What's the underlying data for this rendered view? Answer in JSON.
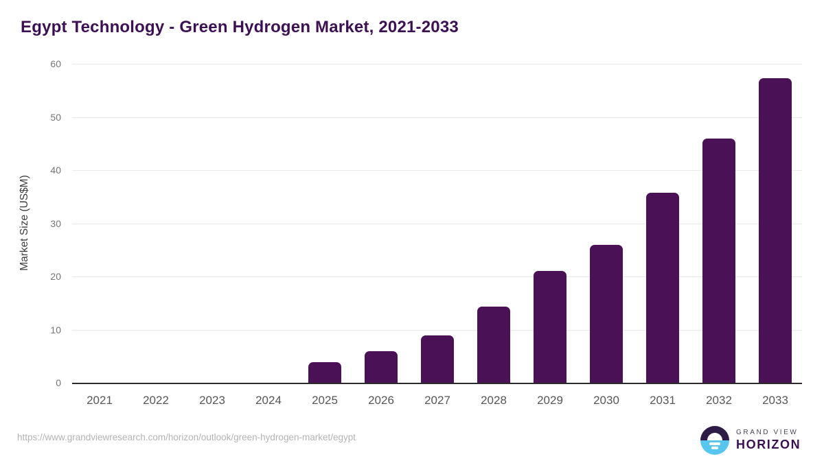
{
  "header": {
    "title": "Egypt Technology - Green Hydrogen Market, 2021-2033"
  },
  "chart_data": {
    "type": "bar",
    "title": "Egypt Technology - Green Hydrogen Market, 2021-2033",
    "categories": [
      "2021",
      "2022",
      "2023",
      "2024",
      "2025",
      "2026",
      "2027",
      "2028",
      "2029",
      "2030",
      "2031",
      "2032",
      "2033"
    ],
    "values": [
      0,
      0,
      0,
      0,
      3.9,
      6.0,
      8.9,
      14.3,
      21.0,
      25.9,
      35.7,
      46.0,
      57.3
    ],
    "xlabel": "",
    "ylabel": "Market Size (US$M)",
    "ylim": [
      0,
      60
    ],
    "yticks": [
      0,
      10,
      20,
      30,
      40,
      50,
      60
    ],
    "grid": "horizontal-light",
    "legend": "none",
    "bar_color": "#4a1157"
  },
  "footer": {
    "source_url": "https://www.grandviewresearch.com/horizon/outlook/green-hydrogen-market/egypt",
    "logo": {
      "icon": "horizon-sun-icon",
      "brand_line1": "GRAND VIEW",
      "brand_line2": "HORIZON"
    }
  },
  "colors": {
    "title_text": "#3c1053",
    "bar": "#4a1157",
    "axis_line": "#2b2b2b",
    "gridline": "#e9e9e9",
    "y_tick_label": "#757575",
    "x_tick_label": "#565656",
    "url_text": "#b3b3b3",
    "logo_purple": "#2e1a47",
    "logo_blue": "#56c6f0"
  }
}
